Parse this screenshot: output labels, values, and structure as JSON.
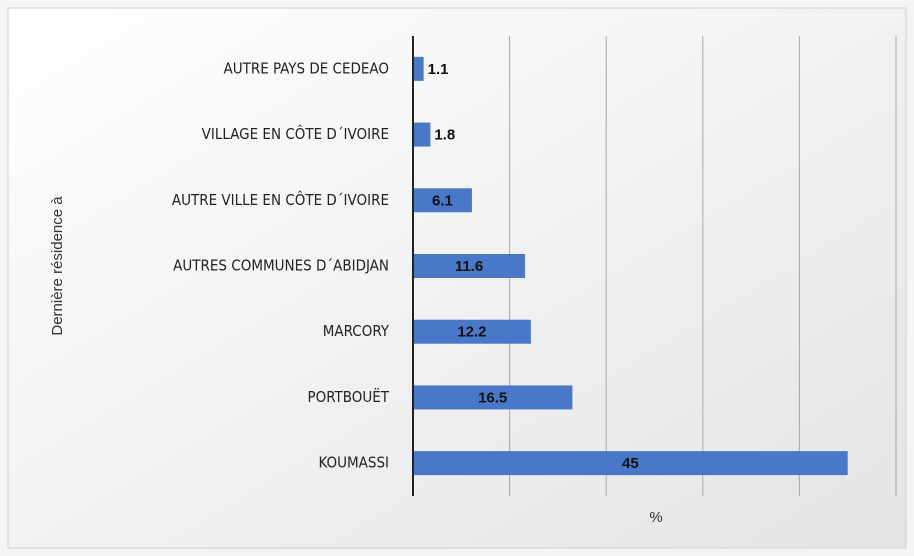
{
  "chart_data": {
    "type": "barh",
    "categories": [
      "AUTRE PAYS DE CEDEAO",
      "VILLAGE EN CÔTE D´IVOIRE",
      "AUTRE VILLE EN CÔTE D´IVOIRE",
      "AUTRES COMMUNES D´ABIDJAN",
      "MARCORY",
      "PORTBOUËT",
      "KOUMASSI"
    ],
    "values": [
      1.1,
      1.8,
      6.1,
      11.6,
      12.2,
      16.5,
      45
    ],
    "color": "#4a78c8",
    "xlabel": "%",
    "ylabel": "Dernière résidence à",
    "xlim": [
      0,
      50
    ],
    "xticks": [
      0,
      10,
      20,
      30,
      40,
      50
    ],
    "grid": true
  }
}
